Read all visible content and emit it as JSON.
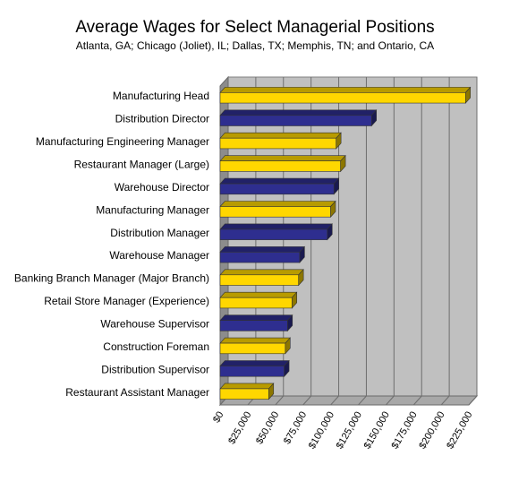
{
  "chart_data": {
    "type": "bar",
    "orientation": "horizontal",
    "title": "Average Wages for Select Managerial Positions",
    "subtitle": "Atlanta, GA; Chicago (Joliet), IL; Dallas, TX; Memphis, TN; and Ontario, CA",
    "xlabel": "",
    "ylabel": "",
    "xlim": [
      0,
      225000
    ],
    "x_ticks": [
      "$0",
      "$25,000",
      "$50,000",
      "$75,000",
      "$100,000",
      "$125,000",
      "$150,000",
      "$175,000",
      "$200,000",
      "$225,000"
    ],
    "grid": true,
    "categories": [
      "Manufacturing Head",
      "Distribution Director",
      "Manufacturing Engineering Manager",
      "Restaurant Manager (Large)",
      "Warehouse Director",
      "Manufacturing Manager",
      "Distribution Manager",
      "Warehouse Manager",
      "Banking Branch Manager (Major Branch)",
      "Retail Store Manager (Experience)",
      "Warehouse Supervisor",
      "Construction Foreman",
      "Distribution Supervisor",
      "Restaurant Assistant Manager"
    ],
    "values": [
      222000,
      137000,
      105000,
      109000,
      103000,
      100000,
      97000,
      72000,
      71000,
      65000,
      61000,
      59000,
      58000,
      44000
    ],
    "bar_colors": [
      "#FFD700",
      "#2E2E8F",
      "#FFD700",
      "#FFD700",
      "#2E2E8F",
      "#FFD700",
      "#2E2E8F",
      "#2E2E8F",
      "#FFD700",
      "#FFD700",
      "#2E2E8F",
      "#FFD700",
      "#2E2E8F",
      "#FFD700"
    ],
    "colors": {
      "yellow": "#FFD700",
      "navy": "#2E2E8F",
      "plot_background": "#C0C0C0",
      "gridline": "#6E6E6E"
    }
  }
}
